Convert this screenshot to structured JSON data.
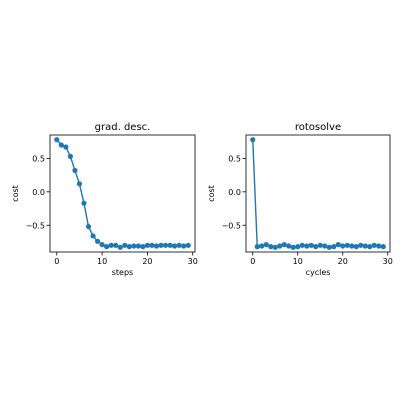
{
  "chart_data": [
    {
      "type": "line",
      "title": "grad. desc.",
      "xlabel": "steps",
      "ylabel": "cost",
      "xlim": [
        -1.5,
        30.5
      ],
      "ylim": [
        -0.9,
        0.85
      ],
      "xticks": [
        0,
        10,
        20,
        30
      ],
      "yticks": [
        -0.5,
        0.0,
        0.5
      ],
      "xtick_labels": [
        "0",
        "10",
        "20",
        "30"
      ],
      "ytick_labels": [
        "−0.5",
        "0.0",
        "0.5"
      ],
      "grid": false,
      "marker": "circle",
      "color": "#1f77b4",
      "series": [
        {
          "x": [
            0,
            1,
            2,
            3,
            4,
            5,
            6,
            7,
            8,
            9,
            10,
            11,
            12,
            13,
            14,
            15,
            16,
            17,
            18,
            19,
            20,
            21,
            22,
            23,
            24,
            25,
            26,
            27,
            28,
            29
          ],
          "y": [
            0.78,
            0.7,
            0.67,
            0.53,
            0.32,
            0.12,
            -0.17,
            -0.52,
            -0.66,
            -0.74,
            -0.79,
            -0.82,
            -0.8,
            -0.8,
            -0.83,
            -0.8,
            -0.82,
            -0.81,
            -0.81,
            -0.82,
            -0.8,
            -0.8,
            -0.81,
            -0.8,
            -0.8,
            -0.8,
            -0.81,
            -0.8,
            -0.81,
            -0.8
          ]
        }
      ]
    },
    {
      "type": "line",
      "title": "rotosolve",
      "xlabel": "cycles",
      "ylabel": "cost",
      "xlim": [
        -1.5,
        30.5
      ],
      "ylim": [
        -0.9,
        0.85
      ],
      "xticks": [
        0,
        10,
        20,
        30
      ],
      "yticks": [
        -0.5,
        0.0,
        0.5
      ],
      "xtick_labels": [
        "0",
        "10",
        "20",
        "30"
      ],
      "ytick_labels": [
        "−0.5",
        "0.0",
        "0.5"
      ],
      "grid": false,
      "marker": "circle",
      "color": "#1f77b4",
      "series": [
        {
          "x": [
            0,
            1,
            2,
            3,
            4,
            5,
            6,
            7,
            8,
            9,
            10,
            11,
            12,
            13,
            14,
            15,
            16,
            17,
            18,
            19,
            20,
            21,
            22,
            23,
            24,
            25,
            26,
            27,
            28,
            29
          ],
          "y": [
            0.78,
            -0.82,
            -0.81,
            -0.79,
            -0.82,
            -0.83,
            -0.81,
            -0.79,
            -0.81,
            -0.83,
            -0.82,
            -0.8,
            -0.81,
            -0.8,
            -0.82,
            -0.8,
            -0.81,
            -0.83,
            -0.82,
            -0.79,
            -0.81,
            -0.8,
            -0.81,
            -0.82,
            -0.8,
            -0.81,
            -0.82,
            -0.8,
            -0.81,
            -0.82
          ]
        }
      ]
    }
  ]
}
